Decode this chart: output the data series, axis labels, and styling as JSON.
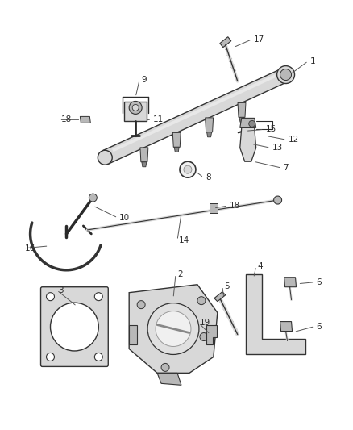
{
  "background_color": "#ffffff",
  "fig_width": 4.38,
  "fig_height": 5.33,
  "dpi": 100,
  "line_color": "#2a2a2a",
  "label_fontsize": 7.5,
  "leader_color": "#555555",
  "part_stroke": "#333333",
  "part_fill_light": "#d8d8d8",
  "part_fill_mid": "#b8b8b8",
  "part_fill_dark": "#888888"
}
